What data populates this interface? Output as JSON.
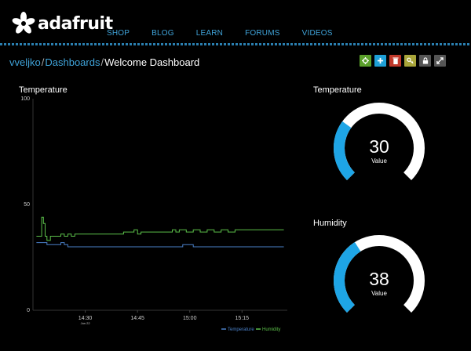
{
  "brand": {
    "name": "adafruit",
    "logo_icon": "adafruit-flower-logo"
  },
  "nav": [
    "SHOP",
    "BLOG",
    "LEARN",
    "FORUMS",
    "VIDEOS"
  ],
  "breadcrumb": {
    "user": "vveljko",
    "section": "Dashboards",
    "current": "Welcome Dashboard",
    "separator": "/"
  },
  "toolbar": [
    {
      "name": "settings-button",
      "icon": "gear-icon",
      "color": "#5ba02b"
    },
    {
      "name": "add-block-button",
      "icon": "plus-icon",
      "color": "#1e9fd6"
    },
    {
      "name": "delete-button",
      "icon": "trash-icon",
      "color": "#c0392b"
    },
    {
      "name": "key-button",
      "icon": "key-icon",
      "color": "#a9a53a"
    },
    {
      "name": "lock-button",
      "icon": "lock-icon",
      "color": "#555555"
    },
    {
      "name": "fullscreen-button",
      "icon": "expand-icon",
      "color": "#555555"
    }
  ],
  "line_chart": {
    "title": "Temperature"
  },
  "gauges": [
    {
      "title": "Temperature",
      "value": "30",
      "label": "Value",
      "fraction": 0.3,
      "color": "#1ea5e6"
    },
    {
      "title": "Humidity",
      "value": "38",
      "label": "Value",
      "fraction": 0.38,
      "color": "#1ea5e6"
    }
  ],
  "chart_data": {
    "type": "line",
    "title": "Temperature",
    "ylim": [
      0,
      100
    ],
    "yticks": [
      0,
      50,
      100
    ],
    "xlim": [
      1430,
      1503
    ],
    "xticks": [
      {
        "x": 1445,
        "label": "14:30",
        "sub": "Jun 22"
      },
      {
        "x": 1460,
        "label": "14:45",
        "sub": ""
      },
      {
        "x": 1475,
        "label": "15:00",
        "sub": ""
      },
      {
        "x": 1490,
        "label": "15:15",
        "sub": ""
      }
    ],
    "series": [
      {
        "name": "Temperature",
        "color": "#4a80c8",
        "x": [
          1431,
          1432.5,
          1433,
          1434,
          1436,
          1438,
          1439,
          1440,
          1442,
          1444,
          1446,
          1448,
          1450,
          1455,
          1460,
          1465,
          1470,
          1472,
          1473,
          1474,
          1476,
          1480,
          1485,
          1490,
          1495,
          1500,
          1502
        ],
        "y": [
          32,
          32,
          32,
          31,
          31,
          32,
          31,
          30,
          30,
          30,
          30,
          30,
          30,
          30,
          30,
          30,
          30,
          30,
          31,
          31,
          30,
          30,
          30,
          30,
          30,
          30,
          30
        ]
      },
      {
        "name": "Humidity",
        "color": "#5cc04a",
        "x": [
          1431,
          1432,
          1432.5,
          1433,
          1433.5,
          1434,
          1434.5,
          1435,
          1436,
          1437,
          1438,
          1439,
          1440,
          1441,
          1442,
          1443,
          1444,
          1446,
          1448,
          1450,
          1452,
          1454,
          1456,
          1458,
          1459,
          1460,
          1461,
          1462,
          1464,
          1466,
          1468,
          1470,
          1471,
          1472,
          1474,
          1476,
          1478,
          1480,
          1482,
          1484,
          1486,
          1488,
          1490,
          1492,
          1494,
          1496,
          1498,
          1500,
          1502
        ],
        "y": [
          35,
          35,
          44,
          41,
          35,
          33,
          33,
          35,
          35,
          35,
          36,
          35,
          36,
          35,
          36,
          36,
          36,
          36,
          36,
          36,
          36,
          36,
          37,
          37,
          38,
          36,
          37,
          37,
          37,
          37,
          37,
          38,
          37,
          38,
          37,
          38,
          37,
          38,
          37,
          38,
          37,
          38,
          38,
          38,
          38,
          38,
          38,
          38,
          38
        ]
      }
    ]
  }
}
